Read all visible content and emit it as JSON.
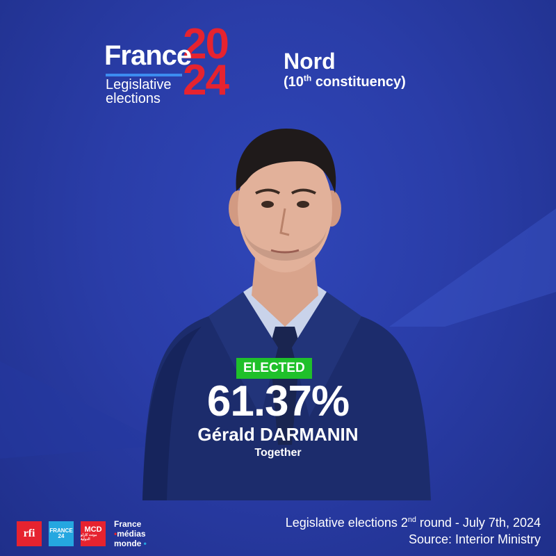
{
  "logo": {
    "brand": "France",
    "year_top": "20",
    "year_bottom": "24",
    "subtitle_line1": "Legislative",
    "subtitle_line2": "elections"
  },
  "region": {
    "name": "Nord",
    "constituency_number": "10",
    "constituency_suffix": "th",
    "constituency_label": "constituency"
  },
  "result": {
    "status": "ELECTED",
    "percentage": "61.37%",
    "candidate": "Gérald DARMANIN",
    "party": "Together"
  },
  "footer": {
    "logos": {
      "rfi": "rfi",
      "france24_line1": "FRANCE",
      "france24_line2": "24",
      "mcd": "MCD",
      "mcd_arabic": "مونت كارلو الدولية",
      "fmm_line1": "France",
      "fmm_line2": "médias",
      "fmm_line3": "monde"
    },
    "line1_prefix": "Legislative elections 2",
    "line1_sup": "nd",
    "line1_suffix": " round - July 7th, 2024",
    "line2": "Source: Interior Ministry"
  },
  "colors": {
    "background": "#2a3da8",
    "accent_red": "#e6232f",
    "elected_green": "#1fc02a",
    "logo_blue_bar": "#3c8cf0"
  },
  "icons": [
    "rfi-logo",
    "france24-logo",
    "mcd-logo",
    "france-medias-monde-logo"
  ]
}
